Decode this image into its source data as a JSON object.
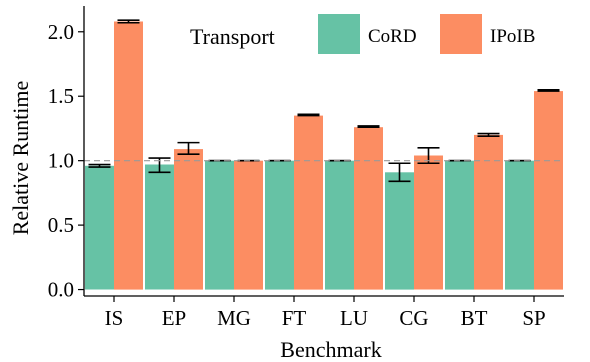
{
  "chart_data": {
    "type": "bar",
    "title": "",
    "xlabel": "Benchmark",
    "ylabel": "Relative Runtime",
    "categories": [
      "IS",
      "EP",
      "MG",
      "FT",
      "LU",
      "CG",
      "BT",
      "SP"
    ],
    "yticks": [
      "0.0",
      "0.5",
      "1.0",
      "1.5",
      "2.0"
    ],
    "ytick_values": [
      0.0,
      0.5,
      1.0,
      1.5,
      2.0
    ],
    "ylim": [
      -0.05,
      2.2
    ],
    "reference_line": 1.0,
    "legend": {
      "title": "Transport",
      "placement": "top"
    },
    "grid": false,
    "series": [
      {
        "name": "CoRD",
        "color": "#66c2a5",
        "values": [
          0.96,
          0.97,
          1.0,
          1.0,
          1.0,
          0.91,
          1.0,
          1.0
        ],
        "err_low": [
          0.95,
          0.91,
          1.0,
          1.0,
          1.0,
          0.84,
          1.0,
          1.0
        ],
        "err_high": [
          0.97,
          1.02,
          1.0,
          1.0,
          1.0,
          0.98,
          1.0,
          1.0
        ]
      },
      {
        "name": "IPoIB",
        "color": "#fc8d62",
        "values": [
          2.08,
          1.09,
          1.0,
          1.35,
          1.26,
          1.04,
          1.2,
          1.54
        ],
        "err_low": [
          2.07,
          1.05,
          1.0,
          1.35,
          1.26,
          0.98,
          1.19,
          1.54
        ],
        "err_high": [
          2.09,
          1.14,
          1.0,
          1.36,
          1.27,
          1.1,
          1.21,
          1.55
        ]
      }
    ]
  }
}
